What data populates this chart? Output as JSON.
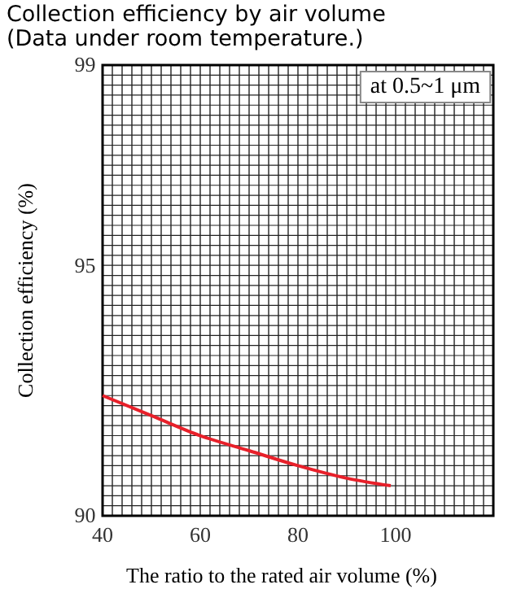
{
  "chart_data": {
    "type": "line",
    "title": "Collection efficiency by air volume",
    "subtitle": "(Data under room temperature.)",
    "xlabel": "The ratio to the rated air volume (%)",
    "ylabel": "Collection efficiency (%)",
    "x": [
      40,
      50,
      60,
      70,
      80,
      90,
      99
    ],
    "series": [
      {
        "color": "#e8202a",
        "values": [
          92.4,
          92.0,
          91.6,
          91.3,
          91.0,
          90.75,
          90.6
        ]
      }
    ],
    "xlim": [
      40,
      120
    ],
    "xticks": [
      40,
      60,
      80,
      100
    ],
    "ylim": [
      90,
      99
    ],
    "yticks": [
      90,
      95,
      99
    ],
    "grid": true,
    "annotations": [
      "at 0.5~1 μm"
    ]
  }
}
